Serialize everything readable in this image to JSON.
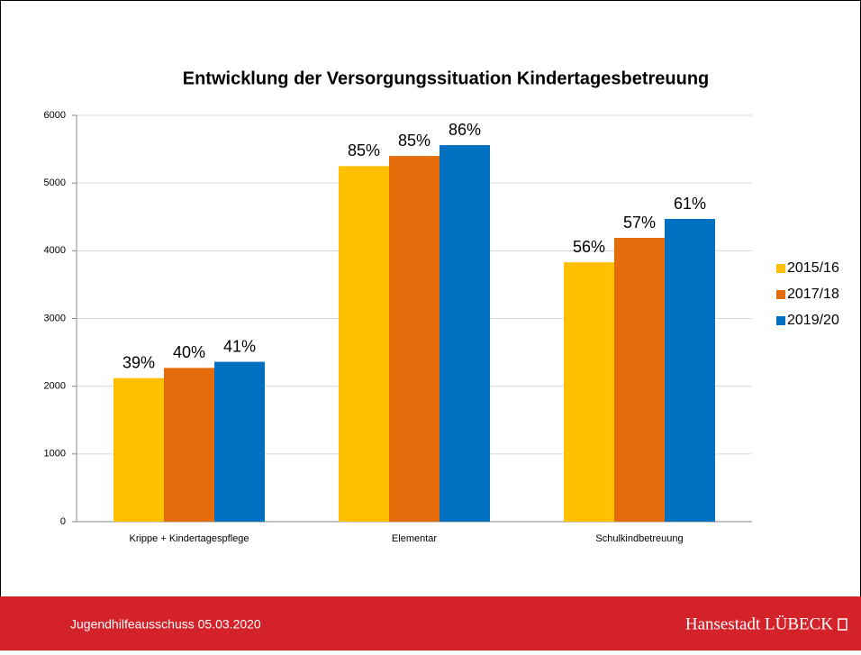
{
  "chart_data": {
    "type": "bar",
    "title": "Entwicklung der Versorgungssituation Kindertagesbetreuung",
    "categories": [
      "Krippe + Kindertagespflege",
      "Elementar",
      "Schulkindbetreuung"
    ],
    "series": [
      {
        "name": "2015/16",
        "color": "#ffc000",
        "values": [
          2120,
          5250,
          3830
        ],
        "rate_labels": [
          "39%",
          "85%",
          "56%"
        ]
      },
      {
        "name": "2017/18",
        "color": "#e46c0a",
        "values": [
          2270,
          5400,
          4190
        ],
        "rate_labels": [
          "40%",
          "85%",
          "57%"
        ]
      },
      {
        "name": "2019/20",
        "color": "#0070c0",
        "values": [
          2360,
          5560,
          4470
        ],
        "rate_labels": [
          "41%",
          "86%",
          "61%"
        ]
      }
    ],
    "ylim": [
      0,
      6000
    ],
    "yticks": [
      0,
      1000,
      2000,
      3000,
      4000,
      5000,
      6000
    ],
    "grid": true,
    "legend": "right"
  },
  "footer": {
    "left": "Jugendhilfeausschuss 05.03.2020",
    "right": "Hansestadt LÜBECK"
  }
}
